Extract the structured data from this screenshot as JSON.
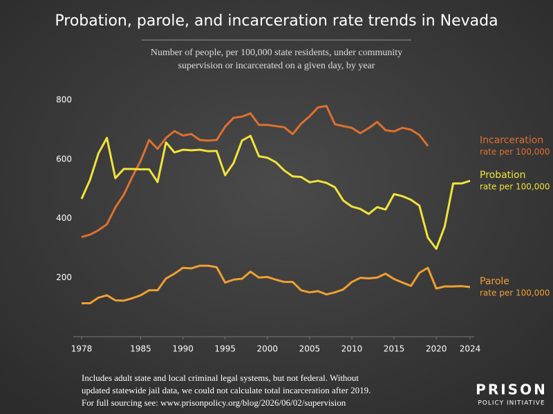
{
  "chart_data": {
    "type": "line",
    "title": "Probation, parole, and incarceration rate trends in Nevada",
    "subtitle_lines": [
      "Number of people, per 100,000 state residents, under community",
      "supervision or incarcerated on a given day, by year"
    ],
    "x": [
      1978,
      1979,
      1980,
      1981,
      1982,
      1983,
      1984,
      1985,
      1986,
      1987,
      1988,
      1989,
      1990,
      1991,
      1992,
      1993,
      1994,
      1995,
      1996,
      1997,
      1998,
      1999,
      2000,
      2001,
      2002,
      2003,
      2004,
      2005,
      2006,
      2007,
      2008,
      2009,
      2010,
      2011,
      2012,
      2013,
      2014,
      2015,
      2016,
      2017,
      2018,
      2019,
      2020,
      2021,
      2022,
      2023,
      2024
    ],
    "xlim": [
      1978,
      2024
    ],
    "xticks": [
      1978,
      1985,
      1990,
      1995,
      2000,
      2005,
      2010,
      2015,
      2020,
      2024
    ],
    "ylim": [
      0,
      800
    ],
    "yticks": [
      200,
      400,
      600,
      800
    ],
    "grid": false,
    "series": [
      {
        "name": "Incarceration",
        "sublabel": "rate per 100,000",
        "color": "#e0702f",
        "values": [
          337,
          345,
          360,
          380,
          437,
          480,
          540,
          595,
          665,
          635,
          672,
          695,
          680,
          685,
          665,
          663,
          665,
          710,
          740,
          744,
          755,
          716,
          716,
          712,
          708,
          685,
          720,
          745,
          775,
          780,
          718,
          712,
          706,
          688,
          705,
          726,
          698,
          694,
          706,
          700,
          682,
          645,
          null,
          null,
          null,
          null,
          null
        ]
      },
      {
        "name": "Probation",
        "sublabel": "rate per 100,000",
        "color": "#f2e33b",
        "values": [
          466,
          530,
          620,
          672,
          536,
          567,
          567,
          566,
          566,
          523,
          657,
          623,
          632,
          630,
          632,
          627,
          628,
          546,
          587,
          663,
          679,
          610,
          605,
          590,
          562,
          542,
          540,
          522,
          527,
          520,
          505,
          460,
          440,
          432,
          415,
          438,
          430,
          482,
          475,
          463,
          443,
          335,
          297,
          373,
          518,
          518,
          527
        ]
      },
      {
        "name": "Parole",
        "sublabel": "rate per 100,000",
        "color": "#f0a032",
        "values": [
          113,
          113,
          132,
          140,
          123,
          122,
          130,
          140,
          157,
          157,
          197,
          213,
          233,
          231,
          240,
          240,
          235,
          183,
          193,
          196,
          220,
          200,
          202,
          193,
          185,
          185,
          157,
          150,
          154,
          143,
          150,
          160,
          185,
          199,
          197,
          200,
          213,
          195,
          183,
          172,
          216,
          233,
          163,
          170,
          170,
          171,
          168
        ]
      }
    ],
    "footnote_lines": [
      "Includes adult state and local criminal legal systems, but not federal. Without",
      "updated statewide jail data, we could not calculate total incarceration after 2019.",
      "For full sourcing see: www.prisonpolicy.org/blog/2026/06/02/supervision"
    ],
    "logo": {
      "top": "PRISON",
      "bottom": "POLICY INITIATIVE"
    }
  }
}
